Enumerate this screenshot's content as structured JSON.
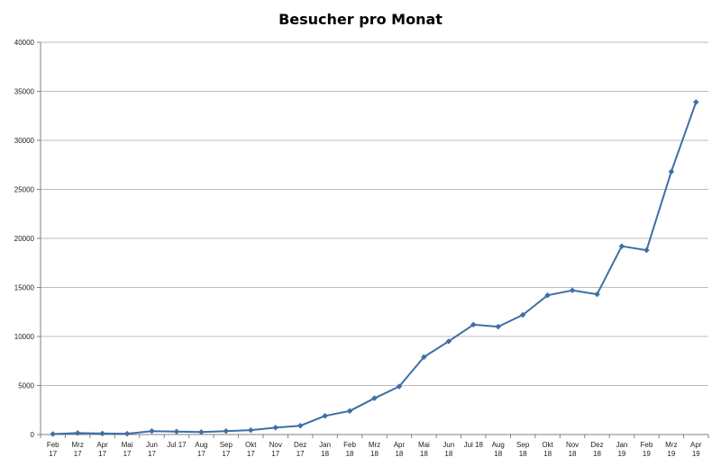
{
  "chart_data": {
    "type": "line",
    "title": "Besucher pro Monat",
    "xlabel": "",
    "ylabel": "",
    "ylim": [
      0,
      40000
    ],
    "y_ticks": [
      "0",
      "5000",
      "10000",
      "15000",
      "20000",
      "25000",
      "30000",
      "35000",
      "40000"
    ],
    "y_tick_values": [
      0,
      5000,
      10000,
      15000,
      20000,
      25000,
      30000,
      35000,
      40000
    ],
    "grid": true,
    "legend": "none",
    "categories": [
      [
        "Feb",
        "17"
      ],
      [
        "Mrz",
        "17"
      ],
      [
        "Apr",
        "17"
      ],
      [
        "Mai",
        "17"
      ],
      [
        "Jun",
        "17"
      ],
      [
        "Jul 17",
        ""
      ],
      [
        "Aug",
        "17"
      ],
      [
        "Sep",
        "17"
      ],
      [
        "Okt",
        "17"
      ],
      [
        "Nov",
        "17"
      ],
      [
        "Dez",
        "17"
      ],
      [
        "Jan",
        "18"
      ],
      [
        "Feb",
        "18"
      ],
      [
        "Mrz",
        "18"
      ],
      [
        "Apr",
        "18"
      ],
      [
        "Mai",
        "18"
      ],
      [
        "Jun",
        "18"
      ],
      [
        "Jul 18",
        ""
      ],
      [
        "Aug",
        "18"
      ],
      [
        "Sep",
        "18"
      ],
      [
        "Okt",
        "18"
      ],
      [
        "Nov",
        "18"
      ],
      [
        "Dez",
        "18"
      ],
      [
        "Jan",
        "19"
      ],
      [
        "Feb",
        "19"
      ],
      [
        "Mrz",
        "19"
      ],
      [
        "Apr",
        "19"
      ]
    ],
    "series": [
      {
        "color": "#3d6fa5",
        "values": [
          50,
          150,
          100,
          80,
          350,
          300,
          250,
          350,
          450,
          700,
          900,
          1900,
          2400,
          3700,
          4900,
          7900,
          9500,
          11200,
          11000,
          12200,
          14200,
          14700,
          14300,
          19200,
          18800,
          26800,
          33900
        ]
      }
    ]
  }
}
